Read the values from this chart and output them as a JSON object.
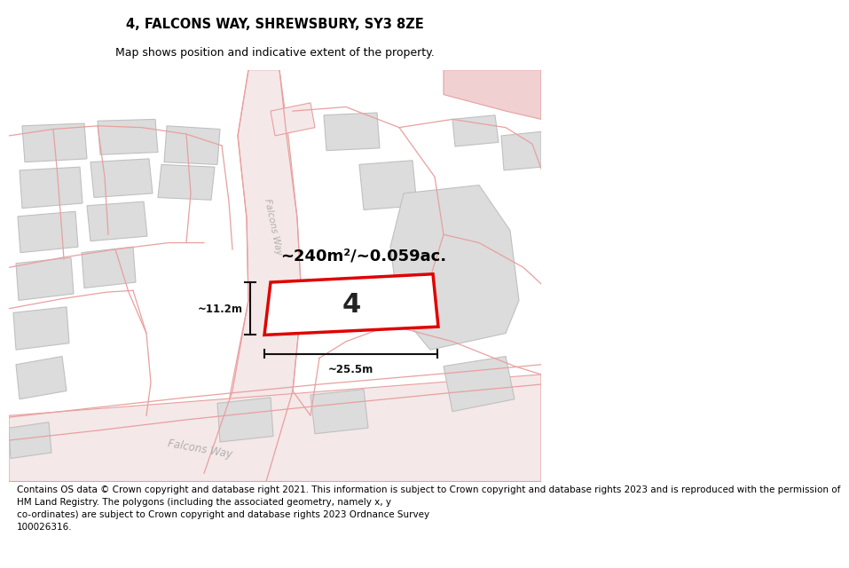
{
  "title": "4, FALCONS WAY, SHREWSBURY, SY3 8ZE",
  "subtitle": "Map shows position and indicative extent of the property.",
  "footer": "Contains OS data © Crown copyright and database right 2021. This information is subject to Crown copyright and database rights 2023 and is reproduced with the permission of\nHM Land Registry. The polygons (including the associated geometry, namely x, y\nco-ordinates) are subject to Crown copyright and database rights 2023 Ordnance Survey\n100026316.",
  "area_label": "~240m²/~0.059ac.",
  "width_label": "~25.5m",
  "height_label": "~11.2m",
  "lot_number": "4",
  "map_bg": "#f8f8f8",
  "road_fill_light": "#f5e8e8",
  "road_outline": "#e8a0a0",
  "building_fill": "#dcdcdc",
  "building_edge": "#c0c0c0",
  "plot_fill": "#ffffff",
  "plot_edge": "#e00000",
  "road_label_color": "#b0b0b0",
  "dim_color": "#111111",
  "title_fontsize": 10.5,
  "subtitle_fontsize": 9,
  "footer_fontsize": 7.5
}
